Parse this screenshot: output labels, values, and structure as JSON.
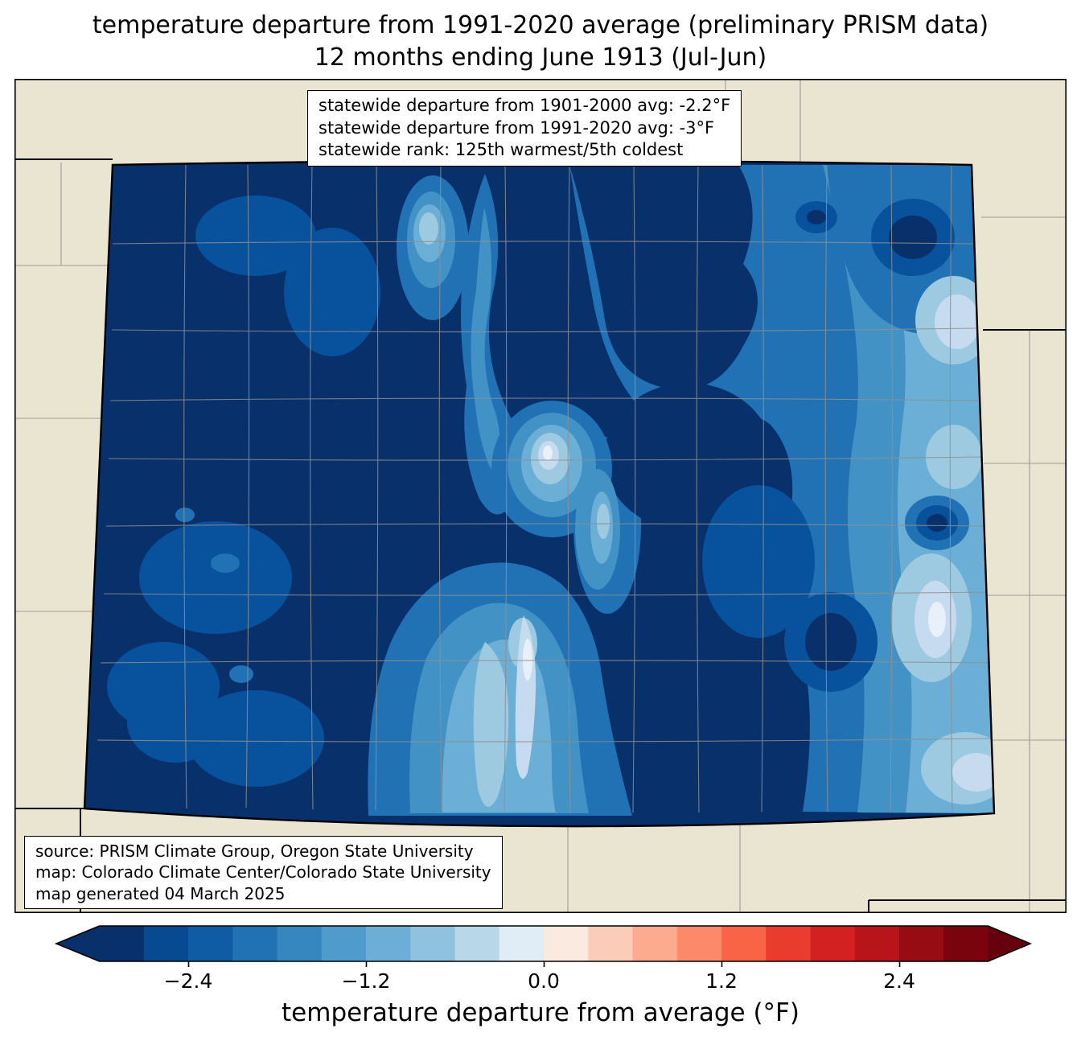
{
  "title": {
    "line1": "temperature departure from 1991-2020 average (preliminary PRISM data)",
    "line2": "12 months ending June 1913 (Jul-Jun)"
  },
  "stats_box": {
    "lines": [
      "statewide departure from 1901-2000 avg: -2.2°F",
      "statewide departure from 1991-2020 avg: -3°F",
      "statewide rank: 125th warmest/5th coldest"
    ]
  },
  "source_box": {
    "lines": [
      "source: PRISM Climate Group, Oregon State University",
      "map: Colorado Climate Center/Colorado State University",
      "map generated 04 March 2025"
    ]
  },
  "colorbar": {
    "label": "temperature departure from average (°F)",
    "ticks": [
      "−2.4",
      "−1.2",
      "0.0",
      "1.2",
      "2.4"
    ],
    "segments": [
      "#08306b",
      "#084a91",
      "#0f5ca4",
      "#2171b5",
      "#3686c0",
      "#4f9bcb",
      "#6caed6",
      "#8fc2de",
      "#b8d8ea",
      "#e0ecf6",
      "#faeae0",
      "#fbcdb9",
      "#fcab8f",
      "#fc8a6a",
      "#f96346",
      "#ea3c2e",
      "#d32020",
      "#b8151b",
      "#970b13",
      "#7a040e"
    ],
    "left_arrow_color": "#08306b",
    "right_arrow_color": "#67000d"
  },
  "palette": {
    "beige": "#e9e5d0",
    "l0": "#08306b",
    "l1": "#08519c",
    "l2": "#2171b5",
    "l3": "#4292c6",
    "l4": "#6baed6",
    "l5": "#9ecae1",
    "l6": "#c6dbef",
    "l7": "#e8f1fa",
    "county": "#8f8f8f",
    "state_border": "#000000"
  }
}
